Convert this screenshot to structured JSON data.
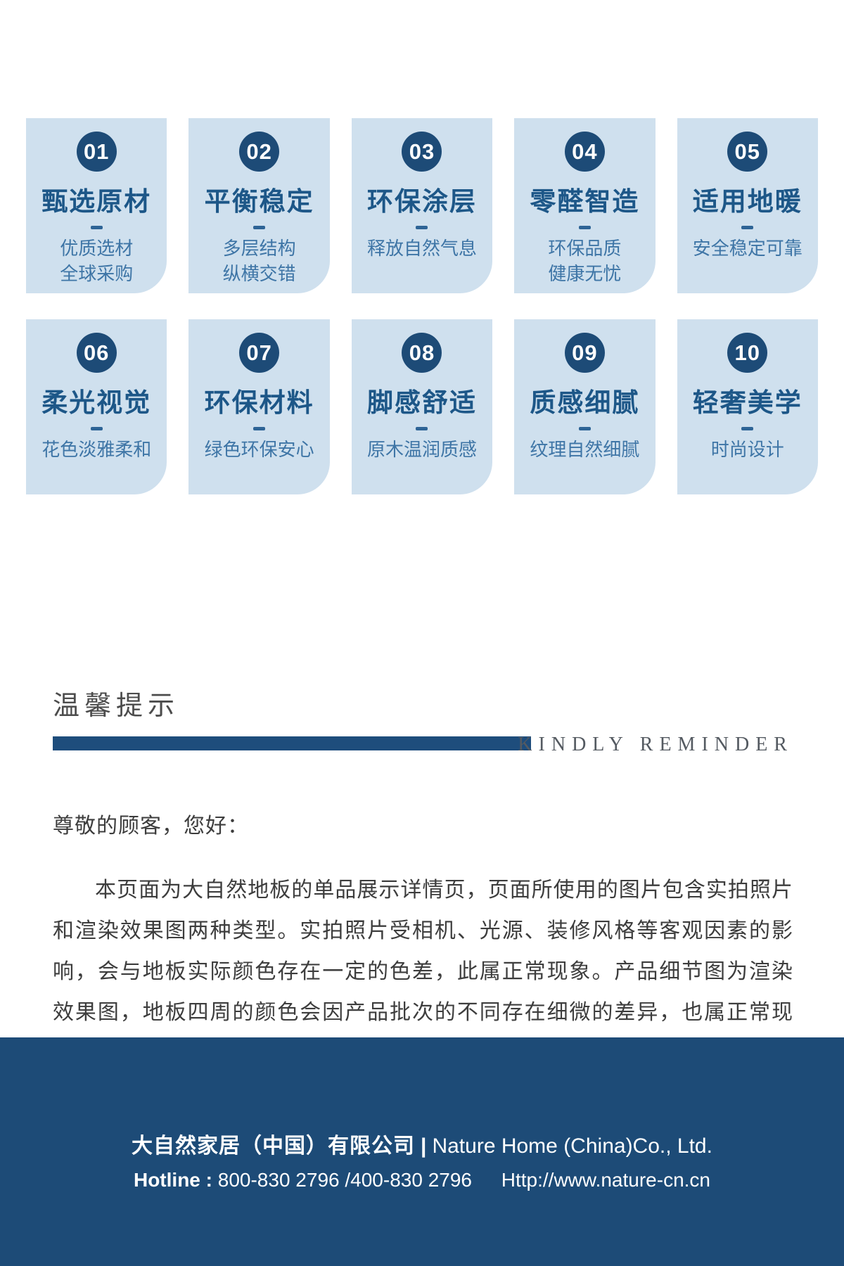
{
  "colors": {
    "navy": "#1d4b77",
    "bar_blue": "#1e4d7c",
    "card_background": "#cfe0ee",
    "card_title_blue": "#1d5788",
    "card_subtitle_blue": "#3e75a6"
  },
  "cards": [
    {
      "num": "01",
      "title": "甄选原材",
      "line1": "优质选材",
      "line2": "全球采购"
    },
    {
      "num": "02",
      "title": "平衡稳定",
      "line1": "多层结构",
      "line2": "纵横交错"
    },
    {
      "num": "03",
      "title": "环保涂层",
      "line1": "释放自然气息",
      "line2": ""
    },
    {
      "num": "04",
      "title": "零醛智造",
      "line1": "环保品质",
      "line2": "健康无忧"
    },
    {
      "num": "05",
      "title": "适用地暖",
      "line1": "安全稳定可靠",
      "line2": ""
    },
    {
      "num": "06",
      "title": "柔光视觉",
      "line1": "花色淡雅柔和",
      "line2": ""
    },
    {
      "num": "07",
      "title": "环保材料",
      "line1": "绿色环保安心",
      "line2": ""
    },
    {
      "num": "08",
      "title": "脚感舒适",
      "line1": "原木温润质感",
      "line2": ""
    },
    {
      "num": "09",
      "title": "质感细腻",
      "line1": "纹理自然细腻",
      "line2": ""
    },
    {
      "num": "10",
      "title": "轻奢美学",
      "line1": "时尚设计",
      "line2": ""
    }
  ],
  "reminder": {
    "heading_cn": "温馨提示",
    "heading_en": "KINDLY REMINDER",
    "greeting": "尊敬的顾客，您好：",
    "body": "本页面为大自然地板的单品展示详情页，页面所使用的图片包含实拍照片和渲染效果图两种类型。实拍照片受相机、光源、装修风格等客观因素的影响，会与地板实际颜色存在一定的色差，此属正常现象。产品细节图为渲染效果图，地板四周的颜色会因产品批次的不同存在细微的差异，也属正常现象。产品的细节以实物为准，图片仅供参考。"
  },
  "footer": {
    "company_cn": "大自然家居（中国）有限公司",
    "separator": "|",
    "company_en": "Nature Home (China)Co., Ltd.",
    "hotline_label": "Hotline :",
    "hotline_numbers": "800-830 2796 /400-830 2796",
    "website": "Http://www.nature-cn.cn"
  }
}
